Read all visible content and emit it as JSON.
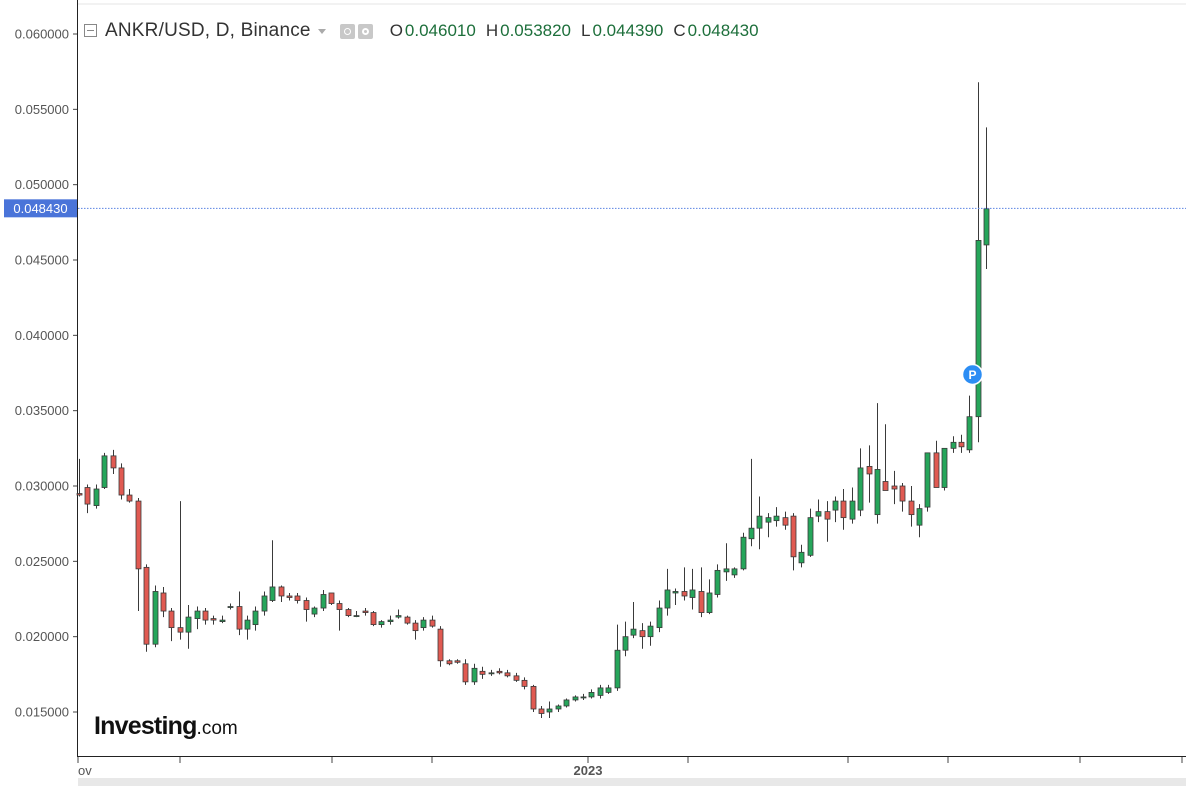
{
  "header": {
    "symbol_title": "ANKR/USD, D, Binance",
    "ohlc": {
      "open_label": "O",
      "open_value": "0.046010",
      "high_label": "H",
      "high_value": "0.053820",
      "low_label": "L",
      "low_value": "0.044390",
      "close_label": "C",
      "close_value": "0.048430"
    }
  },
  "logo": {
    "main": "Investing",
    "suffix": ".com"
  },
  "colors": {
    "up": "#26a65b",
    "down": "#e05a52",
    "candle_border": "#3a3a3a",
    "price_line": "#5b84e3",
    "price_label_bg": "#4a74d9",
    "axis": "#555555",
    "marker_blue": "#2c8df4",
    "bottom_bar": "#e8e8e8"
  },
  "icons": [
    "collapse-icon",
    "caret-down-icon",
    "eye-icon",
    "gear-icon"
  ],
  "chart_data": {
    "type": "candlestick",
    "title": "ANKR/USD, D, Binance",
    "ylim": [
      0.0132,
      0.0615
    ],
    "grid": false,
    "y_ticks": [
      "0.015000",
      "0.020000",
      "0.025000",
      "0.030000",
      "0.035000",
      "0.040000",
      "0.045000",
      "0.050000",
      "0.055000",
      "0.060000"
    ],
    "x_labels": [
      "ov",
      "2023"
    ],
    "last_price_label": "0.048430",
    "last_price": 0.04843,
    "marker_label": "P",
    "marker_price": 0.0374,
    "candles": [
      [
        0.0295,
        0.0318,
        0.0293,
        0.0294
      ],
      [
        0.0299,
        0.0301,
        0.0282,
        0.0288
      ],
      [
        0.0287,
        0.0301,
        0.0285,
        0.0298
      ],
      [
        0.0299,
        0.0322,
        0.0298,
        0.032
      ],
      [
        0.032,
        0.0324,
        0.0308,
        0.0312
      ],
      [
        0.0312,
        0.0315,
        0.0291,
        0.0294
      ],
      [
        0.0294,
        0.0298,
        0.0289,
        0.029
      ],
      [
        0.029,
        0.0292,
        0.0217,
        0.0245
      ],
      [
        0.0246,
        0.0248,
        0.019,
        0.0195
      ],
      [
        0.0195,
        0.0234,
        0.0193,
        0.023
      ],
      [
        0.0229,
        0.0233,
        0.0213,
        0.0217
      ],
      [
        0.0217,
        0.0219,
        0.0197,
        0.0206
      ],
      [
        0.0206,
        0.029,
        0.0198,
        0.0203
      ],
      [
        0.0203,
        0.0221,
        0.0192,
        0.0213
      ],
      [
        0.0212,
        0.022,
        0.0205,
        0.0217
      ],
      [
        0.0217,
        0.0219,
        0.0208,
        0.0211
      ],
      [
        0.0212,
        0.0214,
        0.0208,
        0.0211
      ],
      [
        0.021,
        0.0214,
        0.0209,
        0.0211
      ],
      [
        0.022,
        0.0222,
        0.0218,
        0.022
      ],
      [
        0.022,
        0.023,
        0.0201,
        0.0205
      ],
      [
        0.0205,
        0.0214,
        0.0198,
        0.0211
      ],
      [
        0.0208,
        0.022,
        0.0204,
        0.0217
      ],
      [
        0.0217,
        0.023,
        0.0214,
        0.0227
      ],
      [
        0.0224,
        0.0264,
        0.0223,
        0.0233
      ],
      [
        0.0233,
        0.0234,
        0.0223,
        0.0227
      ],
      [
        0.0227,
        0.0229,
        0.0224,
        0.0226
      ],
      [
        0.0227,
        0.0229,
        0.0222,
        0.0224
      ],
      [
        0.0224,
        0.0226,
        0.021,
        0.0218
      ],
      [
        0.0215,
        0.022,
        0.0213,
        0.0219
      ],
      [
        0.0219,
        0.0231,
        0.0217,
        0.0228
      ],
      [
        0.0229,
        0.0229,
        0.0221,
        0.0222
      ],
      [
        0.0222,
        0.0224,
        0.0204,
        0.0218
      ],
      [
        0.0218,
        0.0219,
        0.0213,
        0.0214
      ],
      [
        0.0214,
        0.0217,
        0.0213,
        0.0214
      ],
      [
        0.0217,
        0.0219,
        0.0214,
        0.0216
      ],
      [
        0.0216,
        0.0217,
        0.0207,
        0.0208
      ],
      [
        0.0208,
        0.0211,
        0.0206,
        0.021
      ],
      [
        0.021,
        0.0214,
        0.0208,
        0.0211
      ],
      [
        0.0213,
        0.0218,
        0.0212,
        0.0214
      ],
      [
        0.0213,
        0.0214,
        0.0208,
        0.0209
      ],
      [
        0.0209,
        0.0211,
        0.0198,
        0.0204
      ],
      [
        0.0206,
        0.0213,
        0.0204,
        0.0211
      ],
      [
        0.0211,
        0.0214,
        0.0206,
        0.0207
      ],
      [
        0.0205,
        0.0207,
        0.018,
        0.0184
      ],
      [
        0.0184,
        0.0185,
        0.0181,
        0.0182
      ],
      [
        0.0184,
        0.0185,
        0.0182,
        0.0183
      ],
      [
        0.0182,
        0.0185,
        0.0168,
        0.017
      ],
      [
        0.017,
        0.0182,
        0.0168,
        0.0179
      ],
      [
        0.0177,
        0.018,
        0.0172,
        0.0175
      ],
      [
        0.0176,
        0.0178,
        0.0174,
        0.0176
      ],
      [
        0.0177,
        0.0179,
        0.0175,
        0.0176
      ],
      [
        0.0176,
        0.0178,
        0.0173,
        0.0174
      ],
      [
        0.0174,
        0.0176,
        0.017,
        0.0171
      ],
      [
        0.0171,
        0.0173,
        0.0165,
        0.0167
      ],
      [
        0.0167,
        0.0168,
        0.015,
        0.0152
      ],
      [
        0.0152,
        0.0154,
        0.0146,
        0.0149
      ],
      [
        0.015,
        0.0157,
        0.0146,
        0.0152
      ],
      [
        0.0152,
        0.0155,
        0.015,
        0.0154
      ],
      [
        0.0154,
        0.0159,
        0.0153,
        0.0158
      ],
      [
        0.0158,
        0.0161,
        0.0157,
        0.016
      ],
      [
        0.016,
        0.0162,
        0.0158,
        0.016
      ],
      [
        0.016,
        0.0165,
        0.0159,
        0.0163
      ],
      [
        0.0161,
        0.0168,
        0.0159,
        0.0166
      ],
      [
        0.0163,
        0.0168,
        0.0162,
        0.0166
      ],
      [
        0.0166,
        0.0208,
        0.0164,
        0.0191
      ],
      [
        0.0191,
        0.021,
        0.0187,
        0.02
      ],
      [
        0.0201,
        0.0223,
        0.0199,
        0.0205
      ],
      [
        0.0204,
        0.0209,
        0.0192,
        0.02
      ],
      [
        0.02,
        0.021,
        0.0194,
        0.0207
      ],
      [
        0.0206,
        0.0224,
        0.0203,
        0.0219
      ],
      [
        0.0219,
        0.0245,
        0.0214,
        0.0231
      ],
      [
        0.0229,
        0.0232,
        0.0221,
        0.023
      ],
      [
        0.023,
        0.0246,
        0.0224,
        0.0227
      ],
      [
        0.0226,
        0.0245,
        0.0218,
        0.0231
      ],
      [
        0.023,
        0.0246,
        0.0213,
        0.0216
      ],
      [
        0.0216,
        0.0238,
        0.0215,
        0.0229
      ],
      [
        0.0228,
        0.0248,
        0.0226,
        0.0244
      ],
      [
        0.0243,
        0.0262,
        0.0237,
        0.0245
      ],
      [
        0.0241,
        0.0246,
        0.0239,
        0.0245
      ],
      [
        0.0245,
        0.0269,
        0.0244,
        0.0266
      ],
      [
        0.0265,
        0.0318,
        0.026,
        0.0272
      ],
      [
        0.0272,
        0.0293,
        0.0258,
        0.028
      ],
      [
        0.0276,
        0.0282,
        0.0266,
        0.0279
      ],
      [
        0.0277,
        0.0286,
        0.0273,
        0.028
      ],
      [
        0.0279,
        0.0283,
        0.0271,
        0.0274
      ],
      [
        0.028,
        0.0282,
        0.0244,
        0.0253
      ],
      [
        0.0249,
        0.0261,
        0.0246,
        0.0256
      ],
      [
        0.0254,
        0.0285,
        0.0253,
        0.0279
      ],
      [
        0.028,
        0.0291,
        0.0276,
        0.0283
      ],
      [
        0.0283,
        0.029,
        0.0263,
        0.0278
      ],
      [
        0.0284,
        0.0293,
        0.0276,
        0.029
      ],
      [
        0.029,
        0.0298,
        0.0271,
        0.0279
      ],
      [
        0.0278,
        0.0299,
        0.0275,
        0.029
      ],
      [
        0.0284,
        0.0325,
        0.028,
        0.0312
      ],
      [
        0.0313,
        0.0327,
        0.0289,
        0.0308
      ],
      [
        0.0281,
        0.0355,
        0.0275,
        0.0311
      ],
      [
        0.0303,
        0.0341,
        0.0297,
        0.0297
      ],
      [
        0.03,
        0.031,
        0.0288,
        0.0298
      ],
      [
        0.03,
        0.0302,
        0.0283,
        0.029
      ],
      [
        0.029,
        0.03,
        0.0273,
        0.0281
      ],
      [
        0.0274,
        0.0288,
        0.0266,
        0.0285
      ],
      [
        0.0286,
        0.0318,
        0.0283,
        0.0322
      ],
      [
        0.0322,
        0.033,
        0.0299,
        0.0299
      ],
      [
        0.0299,
        0.0324,
        0.0297,
        0.0325
      ],
      [
        0.0325,
        0.0333,
        0.0322,
        0.0329
      ],
      [
        0.0329,
        0.0334,
        0.0322,
        0.0326
      ],
      [
        0.0324,
        0.036,
        0.0322,
        0.0346
      ],
      [
        0.0346,
        0.0568,
        0.0329,
        0.0463
      ],
      [
        0.046,
        0.0538,
        0.0444,
        0.0484
      ]
    ]
  }
}
